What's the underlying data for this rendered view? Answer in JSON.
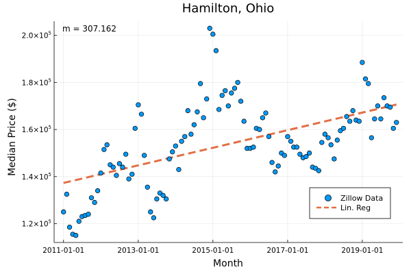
{
  "chart_data": {
    "type": "scatter",
    "title": "Hamilton, Ohio",
    "xlabel": "Month",
    "ylabel": "Median Price ($)",
    "annotation": "m = 307.162",
    "x_ticks": [
      "2011-01-01",
      "2013-01-01",
      "2015-01-01",
      "2017-01-01",
      "2019-01-01"
    ],
    "y_ticks": [
      {
        "value": 120000,
        "mantissa": "1.2",
        "exponent": "5"
      },
      {
        "value": 140000,
        "mantissa": "1.4",
        "exponent": "5"
      },
      {
        "value": 160000,
        "mantissa": "1.6",
        "exponent": "5"
      },
      {
        "value": 180000,
        "mantissa": "1.8",
        "exponent": "5"
      },
      {
        "value": 200000,
        "mantissa": "2.0",
        "exponent": "5"
      }
    ],
    "tick_prefix": "×10",
    "xlim": [
      "2010-10-01",
      "2020-02-01"
    ],
    "ylim": [
      112000,
      206000
    ],
    "grid": true,
    "legend_position": "bottom-right",
    "series": [
      {
        "name": "Zillow Data",
        "kind": "scatter",
        "color": "#009AF9",
        "points": [
          [
            "2011-01-01",
            125000
          ],
          [
            "2011-02-01",
            132500
          ],
          [
            "2011-03-01",
            118500
          ],
          [
            "2011-04-01",
            115500
          ],
          [
            "2011-05-01",
            115000
          ],
          [
            "2011-06-01",
            121000
          ],
          [
            "2011-07-01",
            123000
          ],
          [
            "2011-08-01",
            123500
          ],
          [
            "2011-09-01",
            124000
          ],
          [
            "2011-10-01",
            131000
          ],
          [
            "2011-11-01",
            129000
          ],
          [
            "2011-12-01",
            134000
          ],
          [
            "2012-01-01",
            141500
          ],
          [
            "2012-02-01",
            151500
          ],
          [
            "2012-03-01",
            153500
          ],
          [
            "2012-04-01",
            145000
          ],
          [
            "2012-05-01",
            144000
          ],
          [
            "2012-06-01",
            140500
          ],
          [
            "2012-07-01",
            145500
          ],
          [
            "2012-08-01",
            144000
          ],
          [
            "2012-09-01",
            149500
          ],
          [
            "2012-10-01",
            139000
          ],
          [
            "2012-11-01",
            141000
          ],
          [
            "2012-12-01",
            160500
          ],
          [
            "2013-01-01",
            170500
          ],
          [
            "2013-02-01",
            166500
          ],
          [
            "2013-03-01",
            149000
          ],
          [
            "2013-04-01",
            135500
          ],
          [
            "2013-05-01",
            125000
          ],
          [
            "2013-06-01",
            122500
          ],
          [
            "2013-07-01",
            130500
          ],
          [
            "2013-08-01",
            133000
          ],
          [
            "2013-09-01",
            132000
          ],
          [
            "2013-10-01",
            130500
          ],
          [
            "2013-11-01",
            147500
          ],
          [
            "2013-12-01",
            150500
          ],
          [
            "2014-01-01",
            153000
          ],
          [
            "2014-02-01",
            143000
          ],
          [
            "2014-03-01",
            155000
          ],
          [
            "2014-04-01",
            157000
          ],
          [
            "2014-05-01",
            168000
          ],
          [
            "2014-06-01",
            158000
          ],
          [
            "2014-07-01",
            162000
          ],
          [
            "2014-08-01",
            167500
          ],
          [
            "2014-09-01",
            179500
          ],
          [
            "2014-10-01",
            165000
          ],
          [
            "2014-11-01",
            173000
          ],
          [
            "2014-12-01",
            203000
          ],
          [
            "2015-01-01",
            200500
          ],
          [
            "2015-02-01",
            193500
          ],
          [
            "2015-03-01",
            168500
          ],
          [
            "2015-04-01",
            174500
          ],
          [
            "2015-05-01",
            176500
          ],
          [
            "2015-06-01",
            170000
          ],
          [
            "2015-07-01",
            175500
          ],
          [
            "2015-08-01",
            177500
          ],
          [
            "2015-09-01",
            180000
          ],
          [
            "2015-10-01",
            172000
          ],
          [
            "2015-11-01",
            163500
          ],
          [
            "2015-12-01",
            152000
          ],
          [
            "2016-01-01",
            152000
          ],
          [
            "2016-02-01",
            152500
          ],
          [
            "2016-03-01",
            160500
          ],
          [
            "2016-04-01",
            160000
          ],
          [
            "2016-05-01",
            165000
          ],
          [
            "2016-06-01",
            167000
          ],
          [
            "2016-07-01",
            157000
          ],
          [
            "2016-08-01",
            146000
          ],
          [
            "2016-09-01",
            142000
          ],
          [
            "2016-10-01",
            144500
          ],
          [
            "2016-11-01",
            150000
          ],
          [
            "2016-12-01",
            149000
          ],
          [
            "2017-01-01",
            157000
          ],
          [
            "2017-02-01",
            155000
          ],
          [
            "2017-03-01",
            152500
          ],
          [
            "2017-04-01",
            152500
          ],
          [
            "2017-05-01",
            149500
          ],
          [
            "2017-06-01",
            148000
          ],
          [
            "2017-07-01",
            148500
          ],
          [
            "2017-08-01",
            150000
          ],
          [
            "2017-09-01",
            144000
          ],
          [
            "2017-10-01",
            143500
          ],
          [
            "2017-11-01",
            142500
          ],
          [
            "2017-12-01",
            154500
          ],
          [
            "2018-01-01",
            158000
          ],
          [
            "2018-02-01",
            156500
          ],
          [
            "2018-03-01",
            153500
          ],
          [
            "2018-04-01",
            147500
          ],
          [
            "2018-05-01",
            155500
          ],
          [
            "2018-06-01",
            159500
          ],
          [
            "2018-07-01",
            160500
          ],
          [
            "2018-08-01",
            165500
          ],
          [
            "2018-09-01",
            163500
          ],
          [
            "2018-10-01",
            168000
          ],
          [
            "2018-11-01",
            164000
          ],
          [
            "2018-12-01",
            163500
          ],
          [
            "2019-01-01",
            188500
          ],
          [
            "2019-02-01",
            181500
          ],
          [
            "2019-03-01",
            179500
          ],
          [
            "2019-04-01",
            156500
          ],
          [
            "2019-05-01",
            164500
          ],
          [
            "2019-06-01",
            170000
          ],
          [
            "2019-07-01",
            164500
          ],
          [
            "2019-08-01",
            173500
          ],
          [
            "2019-09-01",
            170000
          ],
          [
            "2019-10-01",
            169500
          ],
          [
            "2019-11-01",
            160500
          ],
          [
            "2019-12-01",
            163000
          ]
        ]
      },
      {
        "name": "Lin. Reg",
        "kind": "line",
        "dash": "dashed",
        "color": "#E26F46",
        "points": [
          [
            "2011-01-01",
            137300
          ],
          [
            "2019-12-01",
            170600
          ]
        ]
      }
    ]
  }
}
